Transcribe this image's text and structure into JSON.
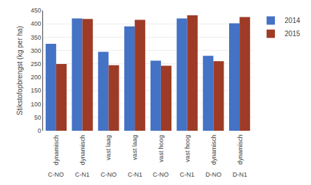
{
  "chart_data": {
    "type": "bar",
    "categories": [
      [
        "dynamisch",
        "C-NO"
      ],
      [
        "dynamisch",
        "C-N1"
      ],
      [
        "vast laag",
        "C-NO"
      ],
      [
        "vast laag",
        "C-N1"
      ],
      [
        "vast hoog",
        "C-NO"
      ],
      [
        "vast hoog",
        "C-N1"
      ],
      [
        "dynamisch",
        "D-NO"
      ],
      [
        "dynamisch",
        "D-N1"
      ]
    ],
    "series": [
      {
        "name": "2014",
        "color": "#4472C4",
        "values": [
          325,
          420,
          295,
          390,
          262,
          420,
          280,
          402
        ]
      },
      {
        "name": "2015",
        "color": "#9E3B26",
        "values": [
          250,
          418,
          245,
          415,
          243,
          432,
          260,
          425
        ]
      }
    ],
    "ylabel": "Stikstofopbrengst (kg per ha)",
    "ylim": [
      0,
      450
    ],
    "yticks": [
      0,
      50,
      100,
      150,
      200,
      250,
      300,
      350,
      400,
      450
    ],
    "grid": true,
    "legend": "right"
  }
}
